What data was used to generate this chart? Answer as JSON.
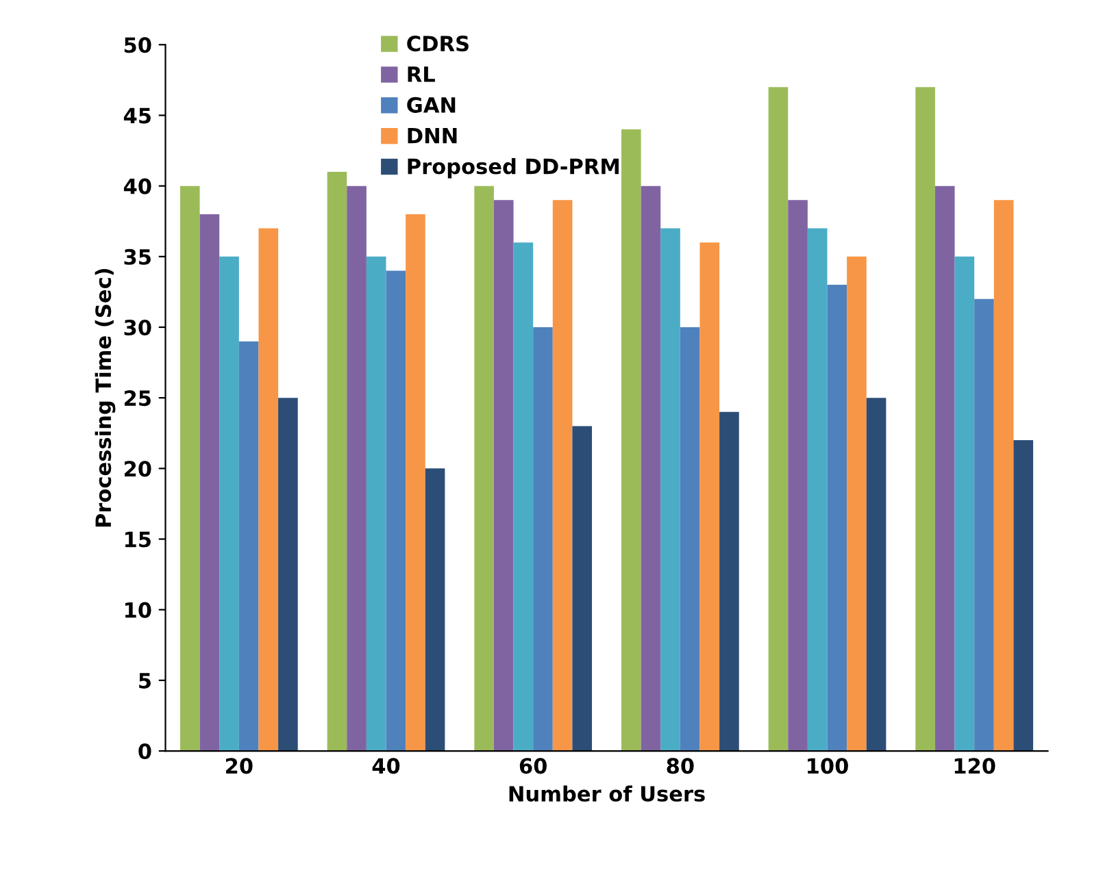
{
  "chart_data": {
    "type": "bar",
    "xlabel": "Number of Users",
    "ylabel": "Processing Time (Sec)",
    "categories": [
      "20",
      "40",
      "60",
      "80",
      "100",
      "120"
    ],
    "series": [
      {
        "name": "CDRS",
        "color": "#9bbb59",
        "values": [
          40,
          41,
          40,
          44,
          47,
          47
        ]
      },
      {
        "name": "RL",
        "color": "#8064a2",
        "values": [
          38,
          40,
          39,
          40,
          39,
          40
        ]
      },
      {
        "color": "#4bacc6",
        "values": [
          35,
          35,
          36,
          37,
          37,
          35
        ]
      },
      {
        "name": "GAN",
        "color": "#4f81bd",
        "values": [
          29,
          34,
          30,
          30,
          33,
          32
        ]
      },
      {
        "name": "DNN",
        "color": "#f79646",
        "values": [
          37,
          38,
          39,
          36,
          35,
          39
        ]
      },
      {
        "name": "Proposed DD-PRM",
        "color": "#2c4d75",
        "values": [
          25,
          20,
          23,
          24,
          25,
          22
        ]
      }
    ],
    "ylim": [
      0,
      50
    ],
    "yticks": [
      0,
      5,
      10,
      15,
      20,
      25,
      30,
      35,
      40,
      45,
      50
    ],
    "grid": false,
    "legend": "top"
  }
}
